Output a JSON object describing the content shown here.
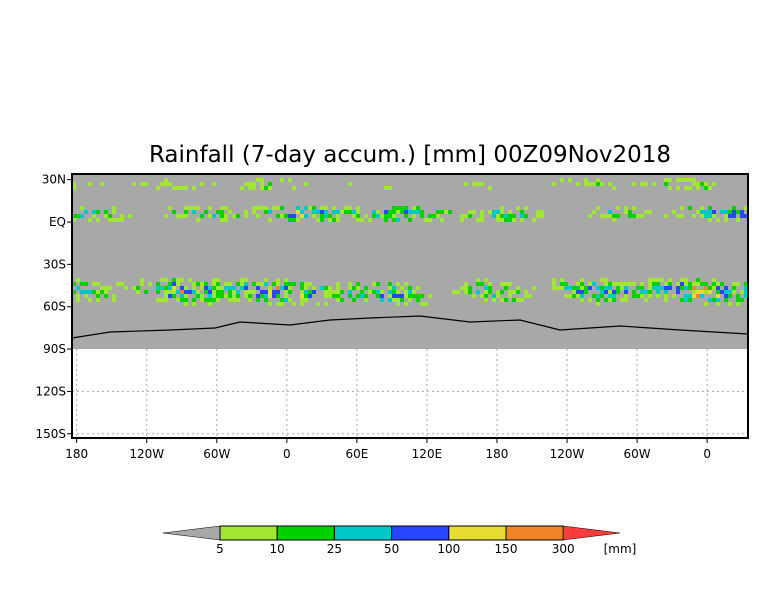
{
  "title": "Rainfall (7-day accum.) [mm] 00Z09Nov2018",
  "chart_data": {
    "type": "heatmap",
    "title": "Rainfall (7-day accum.) [mm] 00Z09Nov2018",
    "variable": "7-day accumulated rainfall",
    "units": "[mm]",
    "valid_time": "00Z09Nov2018",
    "x_ticks": [
      "180",
      "120W",
      "60W",
      "0",
      "60E",
      "120E",
      "180",
      "120W",
      "60W",
      "0"
    ],
    "x_tick_values": [
      -180,
      -120,
      -60,
      0,
      60,
      120,
      180,
      240,
      300,
      360
    ],
    "y_ticks": [
      "30N",
      "EQ",
      "30S",
      "60S",
      "90S",
      "120S",
      "150S"
    ],
    "y_tick_values": [
      30,
      0,
      -30,
      -60,
      -90,
      -120,
      -150
    ],
    "xlim": [
      -184,
      395
    ],
    "ylim": [
      -153,
      34
    ],
    "data_extent_lat": [
      -90,
      34
    ],
    "colorbar": {
      "levels": [
        "5",
        "10",
        "25",
        "50",
        "100",
        "150",
        "300"
      ],
      "colors": [
        "#a8a8a8",
        "#a0e632",
        "#00d200",
        "#00c8c8",
        "#2846ff",
        "#e6dc32",
        "#f08228",
        "#fa3c3c"
      ],
      "unit_label": "[mm]"
    },
    "grid": true
  }
}
